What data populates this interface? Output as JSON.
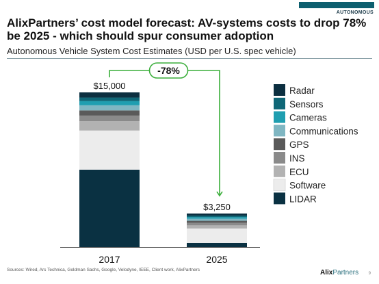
{
  "header": {
    "section_tag": "AUTONOMOUS",
    "title": "AlixPartners’ cost model forecast: AV-systems costs to drop 78% be 2025 - which should spur consumer adoption",
    "subtitle": "Autonomous Vehicle System Cost Estimates (USD per U.S. spec vehicle)"
  },
  "chart_data": {
    "type": "bar",
    "stacked": true,
    "categories": [
      "2017",
      "2025"
    ],
    "totals_labels": [
      "$15,000",
      "$3,250"
    ],
    "totals": [
      15000,
      3250
    ],
    "change_label": "-78%",
    "series": [
      {
        "name": "LIDAR",
        "color": "#0a3142",
        "values": [
          7500,
          400
        ]
      },
      {
        "name": "Software",
        "color": "#ececec",
        "values": [
          3800,
          1400
        ]
      },
      {
        "name": "ECU",
        "color": "#b2b2b2",
        "values": [
          900,
          300
        ]
      },
      {
        "name": "INS",
        "color": "#8a8a8a",
        "values": [
          550,
          250
        ]
      },
      {
        "name": "GPS",
        "color": "#5a5a5a",
        "values": [
          500,
          200
        ]
      },
      {
        "name": "Communications",
        "color": "#7fb6c2",
        "values": [
          500,
          200
        ]
      },
      {
        "name": "Cameras",
        "color": "#1f9eb0",
        "values": [
          400,
          150
        ]
      },
      {
        "name": "Sensors",
        "color": "#0f6777",
        "values": [
          350,
          150
        ]
      },
      {
        "name": "Radar",
        "color": "#0c2f40",
        "values": [
          500,
          200
        ]
      }
    ],
    "legend_order": [
      "Radar",
      "Sensors",
      "Cameras",
      "Communications",
      "GPS",
      "INS",
      "ECU",
      "Software",
      "LIDAR"
    ],
    "legend_position": "right",
    "ylim": [
      0,
      15000
    ],
    "grid": false,
    "accent_color": "#3aae3a"
  },
  "footer": {
    "sources": "Sources: Wired, Ars Technica, Goldman Sachs, Google, Velodyne, IEEE, Client work, AlixPartners",
    "logo_main": "Alix",
    "logo_rest": "Partners",
    "page_number": "9"
  }
}
